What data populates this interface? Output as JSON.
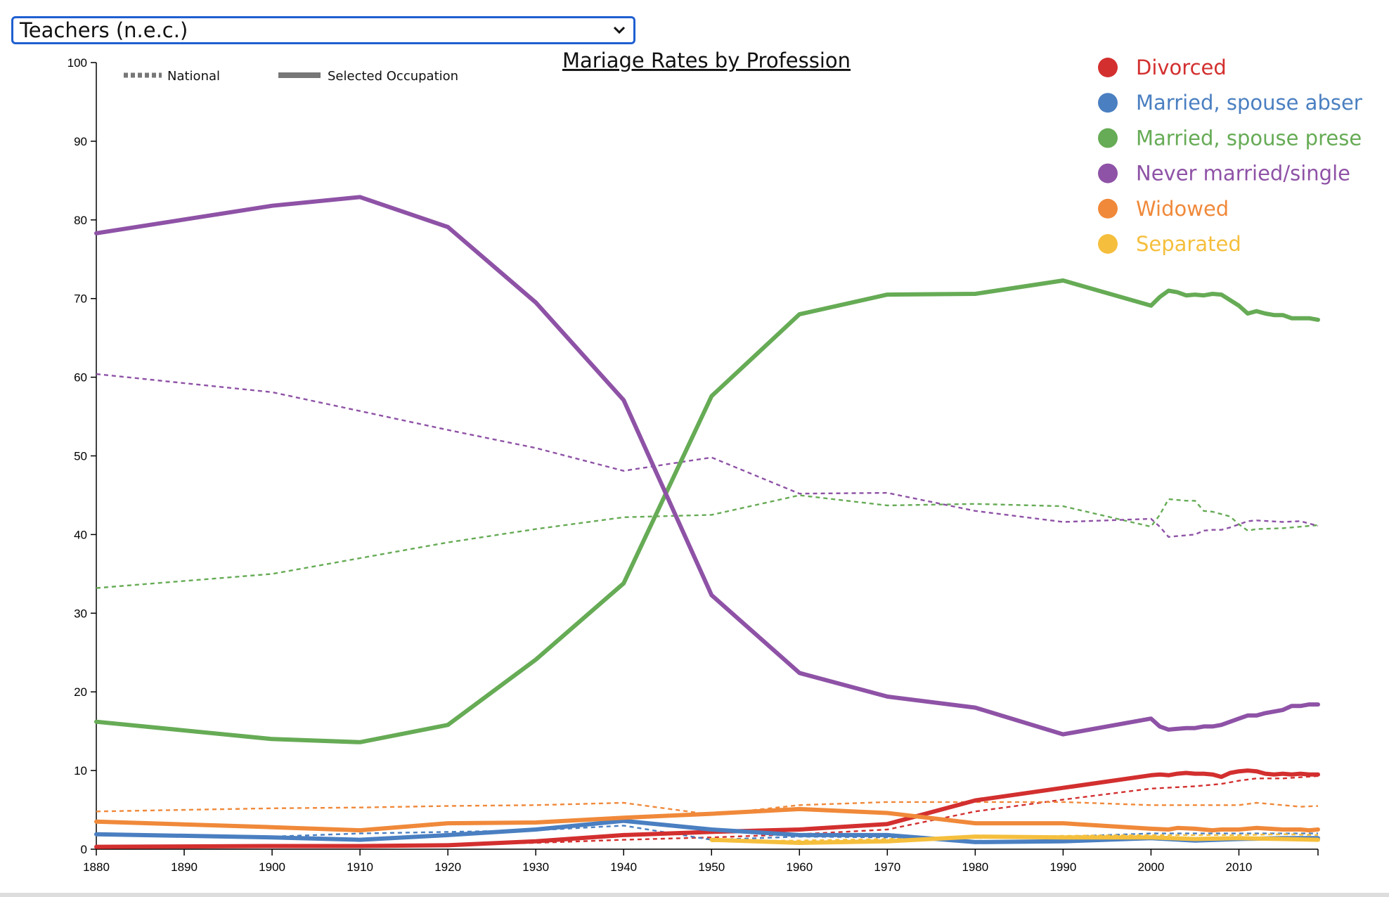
{
  "dropdown": {
    "selected": "Teachers (n.e.c.)"
  },
  "chart_data": {
    "type": "line",
    "title": "Mariage Rates by Profession",
    "xlim": [
      1880,
      2019
    ],
    "ylim": [
      0,
      100
    ],
    "x_ticks": [
      1880,
      1890,
      1900,
      1910,
      1920,
      1930,
      1940,
      1950,
      1960,
      1970,
      1980,
      1990,
      2000,
      2010
    ],
    "y_ticks": [
      0,
      10,
      20,
      30,
      40,
      50,
      60,
      70,
      80,
      90,
      100
    ],
    "grid": false,
    "legend_position": "top-right",
    "line_styles": [
      {
        "label": "National",
        "style": "dashed"
      },
      {
        "label": "Selected Occupation",
        "style": "solid"
      }
    ],
    "series": [
      {
        "name": "Divorced",
        "color": "#d32f2f",
        "selected": [
          [
            1880,
            0.3
          ],
          [
            1900,
            0.4
          ],
          [
            1910,
            0.4
          ],
          [
            1920,
            0.5
          ],
          [
            1930,
            1.0
          ],
          [
            1940,
            1.8
          ],
          [
            1950,
            2.2
          ],
          [
            1960,
            2.5
          ],
          [
            1970,
            3.2
          ],
          [
            1980,
            6.2
          ],
          [
            1990,
            7.8
          ],
          [
            2000,
            9.4
          ],
          [
            2001,
            9.5
          ],
          [
            2002,
            9.4
          ],
          [
            2003,
            9.6
          ],
          [
            2004,
            9.7
          ],
          [
            2005,
            9.6
          ],
          [
            2006,
            9.6
          ],
          [
            2007,
            9.5
          ],
          [
            2008,
            9.2
          ],
          [
            2009,
            9.7
          ],
          [
            2010,
            9.9
          ],
          [
            2011,
            10.0
          ],
          [
            2012,
            9.9
          ],
          [
            2013,
            9.6
          ],
          [
            2014,
            9.5
          ],
          [
            2015,
            9.6
          ],
          [
            2016,
            9.5
          ],
          [
            2017,
            9.6
          ],
          [
            2018,
            9.5
          ],
          [
            2019,
            9.5
          ]
        ],
        "national": [
          [
            1880,
            0.3
          ],
          [
            1900,
            0.4
          ],
          [
            1910,
            0.4
          ],
          [
            1920,
            0.6
          ],
          [
            1930,
            0.8
          ],
          [
            1940,
            1.2
          ],
          [
            1950,
            1.5
          ],
          [
            1960,
            1.9
          ],
          [
            1970,
            2.5
          ],
          [
            1980,
            4.8
          ],
          [
            1990,
            6.3
          ],
          [
            2000,
            7.7
          ],
          [
            2005,
            8.0
          ],
          [
            2008,
            8.3
          ],
          [
            2010,
            8.7
          ],
          [
            2012,
            9.0
          ],
          [
            2015,
            9.0
          ],
          [
            2019,
            9.3
          ]
        ]
      },
      {
        "name": "Married, spouse absent",
        "color": "#4a7fc1",
        "selected": [
          [
            1880,
            1.9
          ],
          [
            1900,
            1.5
          ],
          [
            1910,
            1.2
          ],
          [
            1920,
            1.8
          ],
          [
            1930,
            2.5
          ],
          [
            1940,
            3.6
          ],
          [
            1950,
            2.5
          ],
          [
            1960,
            1.8
          ],
          [
            1970,
            1.8
          ],
          [
            1980,
            0.9
          ],
          [
            1990,
            1.0
          ],
          [
            2000,
            1.4
          ],
          [
            2005,
            1.1
          ],
          [
            2010,
            1.3
          ],
          [
            2015,
            1.4
          ],
          [
            2019,
            1.4
          ]
        ],
        "national": [
          [
            1880,
            1.8
          ],
          [
            1900,
            1.6
          ],
          [
            1910,
            2.0
          ],
          [
            1920,
            2.2
          ],
          [
            1930,
            2.4
          ],
          [
            1940,
            3.0
          ],
          [
            1950,
            1.2
          ],
          [
            1960,
            1.6
          ],
          [
            1970,
            1.5
          ],
          [
            1980,
            1.5
          ],
          [
            1990,
            1.6
          ],
          [
            2000,
            2.0
          ],
          [
            2005,
            2.0
          ],
          [
            2010,
            2.0
          ],
          [
            2015,
            2.0
          ],
          [
            2019,
            2.0
          ]
        ]
      },
      {
        "name": "Married, spouse present",
        "color": "#66ab55",
        "selected": [
          [
            1880,
            16.2
          ],
          [
            1900,
            14.0
          ],
          [
            1910,
            13.6
          ],
          [
            1920,
            15.8
          ],
          [
            1930,
            24.1
          ],
          [
            1940,
            33.8
          ],
          [
            1950,
            57.6
          ],
          [
            1960,
            68.0
          ],
          [
            1970,
            70.5
          ],
          [
            1980,
            70.6
          ],
          [
            1990,
            72.3
          ],
          [
            2000,
            69.1
          ],
          [
            2001,
            70.2
          ],
          [
            2002,
            71.0
          ],
          [
            2003,
            70.8
          ],
          [
            2004,
            70.4
          ],
          [
            2005,
            70.5
          ],
          [
            2006,
            70.4
          ],
          [
            2007,
            70.6
          ],
          [
            2008,
            70.5
          ],
          [
            2009,
            69.8
          ],
          [
            2010,
            69.1
          ],
          [
            2011,
            68.1
          ],
          [
            2012,
            68.4
          ],
          [
            2013,
            68.1
          ],
          [
            2014,
            67.9
          ],
          [
            2015,
            67.9
          ],
          [
            2016,
            67.5
          ],
          [
            2017,
            67.5
          ],
          [
            2018,
            67.5
          ],
          [
            2019,
            67.3
          ]
        ],
        "national": [
          [
            1880,
            33.2
          ],
          [
            1900,
            35.0
          ],
          [
            1910,
            37.0
          ],
          [
            1920,
            39.0
          ],
          [
            1930,
            40.7
          ],
          [
            1940,
            42.2
          ],
          [
            1950,
            42.5
          ],
          [
            1960,
            45.0
          ],
          [
            1970,
            43.7
          ],
          [
            1980,
            43.9
          ],
          [
            1990,
            43.6
          ],
          [
            2000,
            41.0
          ],
          [
            2001,
            42.5
          ],
          [
            2002,
            44.5
          ],
          [
            2003,
            44.4
          ],
          [
            2004,
            44.3
          ],
          [
            2005,
            44.3
          ],
          [
            2006,
            43.0
          ],
          [
            2007,
            42.9
          ],
          [
            2008,
            42.6
          ],
          [
            2009,
            42.3
          ],
          [
            2010,
            41.3
          ],
          [
            2011,
            40.5
          ],
          [
            2012,
            40.7
          ],
          [
            2015,
            40.8
          ],
          [
            2019,
            41.2
          ]
        ]
      },
      {
        "name": "Never married/single",
        "color": "#8e52a6",
        "selected": [
          [
            1880,
            78.3
          ],
          [
            1900,
            81.8
          ],
          [
            1910,
            82.9
          ],
          [
            1920,
            79.1
          ],
          [
            1930,
            69.5
          ],
          [
            1940,
            57.1
          ],
          [
            1950,
            32.3
          ],
          [
            1960,
            22.4
          ],
          [
            1970,
            19.4
          ],
          [
            1980,
            18.0
          ],
          [
            1990,
            14.6
          ],
          [
            2000,
            16.6
          ],
          [
            2001,
            15.6
          ],
          [
            2002,
            15.2
          ],
          [
            2003,
            15.3
          ],
          [
            2004,
            15.4
          ],
          [
            2005,
            15.4
          ],
          [
            2006,
            15.6
          ],
          [
            2007,
            15.6
          ],
          [
            2008,
            15.8
          ],
          [
            2009,
            16.2
          ],
          [
            2010,
            16.6
          ],
          [
            2011,
            17.0
          ],
          [
            2012,
            17.0
          ],
          [
            2013,
            17.3
          ],
          [
            2014,
            17.5
          ],
          [
            2015,
            17.7
          ],
          [
            2016,
            18.2
          ],
          [
            2017,
            18.2
          ],
          [
            2018,
            18.4
          ],
          [
            2019,
            18.4
          ]
        ],
        "national": [
          [
            1880,
            60.4
          ],
          [
            1900,
            58.1
          ],
          [
            1910,
            55.7
          ],
          [
            1920,
            53.3
          ],
          [
            1930,
            51.0
          ],
          [
            1940,
            48.1
          ],
          [
            1950,
            49.8
          ],
          [
            1960,
            45.2
          ],
          [
            1970,
            45.3
          ],
          [
            1980,
            43.0
          ],
          [
            1990,
            41.6
          ],
          [
            2000,
            42.0
          ],
          [
            2001,
            41.0
          ],
          [
            2002,
            39.7
          ],
          [
            2003,
            39.8
          ],
          [
            2004,
            39.9
          ],
          [
            2005,
            40.0
          ],
          [
            2006,
            40.5
          ],
          [
            2007,
            40.6
          ],
          [
            2008,
            40.6
          ],
          [
            2009,
            40.9
          ],
          [
            2010,
            41.3
          ],
          [
            2011,
            41.7
          ],
          [
            2012,
            41.8
          ],
          [
            2015,
            41.6
          ],
          [
            2017,
            41.7
          ],
          [
            2019,
            41.1
          ]
        ]
      },
      {
        "name": "Widowed",
        "color": "#f0893a",
        "selected": [
          [
            1880,
            3.5
          ],
          [
            1900,
            2.8
          ],
          [
            1910,
            2.4
          ],
          [
            1920,
            3.3
          ],
          [
            1930,
            3.4
          ],
          [
            1940,
            4.0
          ],
          [
            1950,
            4.5
          ],
          [
            1960,
            5.1
          ],
          [
            1970,
            4.6
          ],
          [
            1980,
            3.3
          ],
          [
            1990,
            3.3
          ],
          [
            2000,
            2.6
          ],
          [
            2002,
            2.5
          ],
          [
            2003,
            2.7
          ],
          [
            2005,
            2.6
          ],
          [
            2007,
            2.4
          ],
          [
            2008,
            2.5
          ],
          [
            2010,
            2.5
          ],
          [
            2012,
            2.7
          ],
          [
            2015,
            2.5
          ],
          [
            2017,
            2.5
          ],
          [
            2018,
            2.4
          ],
          [
            2019,
            2.5
          ]
        ],
        "national": [
          [
            1880,
            4.8
          ],
          [
            1900,
            5.2
          ],
          [
            1910,
            5.3
          ],
          [
            1920,
            5.5
          ],
          [
            1930,
            5.6
          ],
          [
            1940,
            5.9
          ],
          [
            1950,
            4.4
          ],
          [
            1960,
            5.6
          ],
          [
            1970,
            6.0
          ],
          [
            1980,
            6.0
          ],
          [
            1990,
            6.0
          ],
          [
            2000,
            5.6
          ],
          [
            2005,
            5.6
          ],
          [
            2010,
            5.6
          ],
          [
            2012,
            5.9
          ],
          [
            2015,
            5.6
          ],
          [
            2017,
            5.4
          ],
          [
            2019,
            5.5
          ]
        ]
      },
      {
        "name": "Separated",
        "color": "#f5bf3d",
        "selected": [
          [
            1950,
            1.2
          ],
          [
            1960,
            0.8
          ],
          [
            1970,
            1.0
          ],
          [
            1980,
            1.6
          ],
          [
            1990,
            1.5
          ],
          [
            2000,
            1.5
          ],
          [
            2005,
            1.3
          ],
          [
            2010,
            1.4
          ],
          [
            2015,
            1.3
          ],
          [
            2019,
            1.2
          ]
        ],
        "national": [
          [
            1950,
            1.0
          ],
          [
            1960,
            1.1
          ],
          [
            1970,
            1.3
          ],
          [
            1980,
            1.5
          ],
          [
            1990,
            1.7
          ],
          [
            2000,
            1.8
          ],
          [
            2005,
            1.8
          ],
          [
            2010,
            1.8
          ],
          [
            2015,
            1.9
          ],
          [
            2019,
            1.8
          ]
        ]
      }
    ]
  }
}
